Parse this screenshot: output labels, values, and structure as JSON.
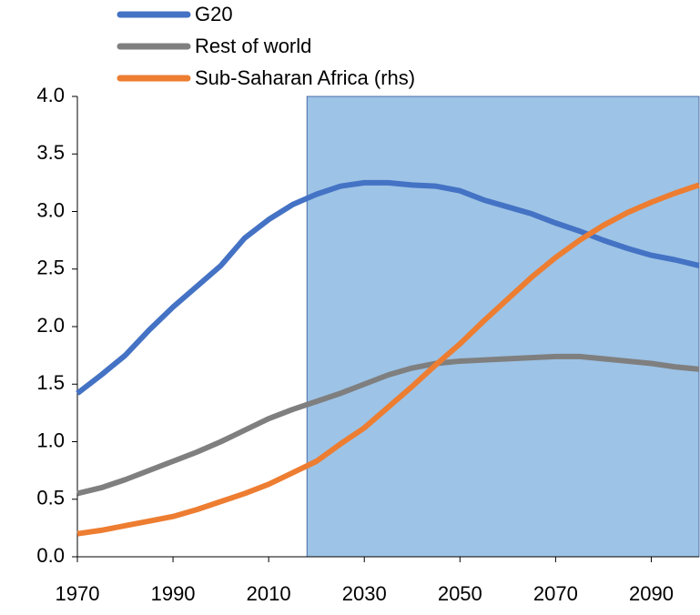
{
  "chart_data": {
    "type": "line",
    "x": [
      1970,
      1975,
      1980,
      1985,
      1990,
      1995,
      2000,
      2005,
      2010,
      2015,
      2020,
      2025,
      2030,
      2035,
      2040,
      2045,
      2050,
      2055,
      2060,
      2065,
      2070,
      2075,
      2080,
      2085,
      2090,
      2095,
      2100
    ],
    "series": [
      {
        "name": "G20",
        "color": "#4472c4",
        "values": [
          1.42,
          1.58,
          1.75,
          1.97,
          2.17,
          2.35,
          2.53,
          2.77,
          2.93,
          3.06,
          3.15,
          3.22,
          3.25,
          3.25,
          3.23,
          3.22,
          3.18,
          3.1,
          3.04,
          2.98,
          2.9,
          2.83,
          2.75,
          2.68,
          2.62,
          2.58,
          2.53
        ]
      },
      {
        "name": "Rest of world",
        "color": "#7f7f7f",
        "values": [
          0.55,
          0.6,
          0.67,
          0.75,
          0.83,
          0.91,
          1.0,
          1.1,
          1.2,
          1.28,
          1.35,
          1.42,
          1.5,
          1.58,
          1.64,
          1.68,
          1.7,
          1.71,
          1.72,
          1.73,
          1.74,
          1.74,
          1.72,
          1.7,
          1.68,
          1.65,
          1.63
        ]
      },
      {
        "name": "Sub-Saharan Africa (rhs)",
        "color": "#ed7d31",
        "values": [
          0.2,
          0.23,
          0.27,
          0.31,
          0.35,
          0.41,
          0.48,
          0.55,
          0.63,
          0.73,
          0.83,
          0.98,
          1.12,
          1.3,
          1.48,
          1.67,
          1.85,
          2.05,
          2.24,
          2.43,
          2.6,
          2.75,
          2.88,
          2.99,
          3.08,
          3.16,
          3.23
        ]
      }
    ],
    "shaded_range": [
      2018,
      2100
    ],
    "shade_color": "#9dc3e6",
    "xlim": [
      1970,
      2100
    ],
    "xticks": [
      1970,
      1990,
      2010,
      2030,
      2050,
      2070,
      2090
    ],
    "ylim": [
      0,
      4
    ],
    "yticks": [
      {
        "value": 0,
        "label": "0.0"
      },
      0.5,
      {
        "value": 1,
        "label": "1.0"
      },
      1.5,
      {
        "value": 2,
        "label": "2.0"
      },
      2.5,
      {
        "value": 3,
        "label": "3.0"
      },
      3.5,
      {
        "value": 4,
        "label": "4.0"
      }
    ]
  }
}
